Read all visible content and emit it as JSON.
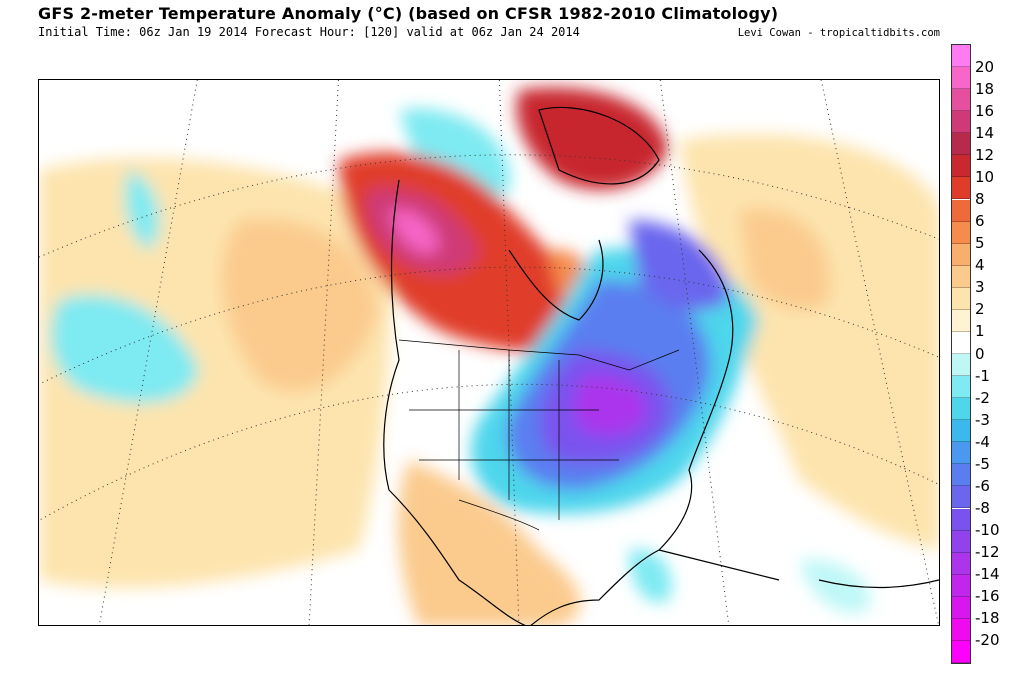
{
  "header": {
    "title": "GFS 2-meter Temperature Anomaly (°C) (based on CFSR 1982-2010 Climatology)",
    "subtitle": "Initial Time: 06z Jan 19 2014 Forecast Hour: [120] valid at 06z Jan 24 2014",
    "credit": "Levi Cowan - tropicaltidbits.com"
  },
  "map": {
    "region": "North America",
    "variable": "2-meter temperature anomaly",
    "units": "°C"
  },
  "colorbar": {
    "levels": [
      {
        "label": "20",
        "color": "#ff7cf0"
      },
      {
        "label": "18",
        "color": "#f766c8"
      },
      {
        "label": "16",
        "color": "#e54f9e"
      },
      {
        "label": "14",
        "color": "#cf3a76"
      },
      {
        "label": "12",
        "color": "#b82a4c"
      },
      {
        "label": "10",
        "color": "#c8282e"
      },
      {
        "label": "8",
        "color": "#e03c2a"
      },
      {
        "label": "6",
        "color": "#ee6a3a"
      },
      {
        "label": "5",
        "color": "#f58c4e"
      },
      {
        "label": "4",
        "color": "#f8ae6c"
      },
      {
        "label": "3",
        "color": "#fbcb8e"
      },
      {
        "label": "2",
        "color": "#fde4ae"
      },
      {
        "label": "1",
        "color": "#fff3d4"
      },
      {
        "label": "0",
        "color": "#ffffff"
      },
      {
        "label": "-1",
        "color": "#bff7f7"
      },
      {
        "label": "-2",
        "color": "#7eeaf2"
      },
      {
        "label": "-3",
        "color": "#4dd6ec"
      },
      {
        "label": "-4",
        "color": "#3bb8ec"
      },
      {
        "label": "-5",
        "color": "#4a98ef"
      },
      {
        "label": "-6",
        "color": "#5a7ef0"
      },
      {
        "label": "-8",
        "color": "#6a66ee"
      },
      {
        "label": "-10",
        "color": "#7a52ee"
      },
      {
        "label": "-12",
        "color": "#9242ec"
      },
      {
        "label": "-14",
        "color": "#ab34ec"
      },
      {
        "label": "-16",
        "color": "#c226ec"
      },
      {
        "label": "-18",
        "color": "#d816ee"
      },
      {
        "label": "-20",
        "color": "#f00af0"
      }
    ],
    "bottom_color": "#ff00ff"
  }
}
